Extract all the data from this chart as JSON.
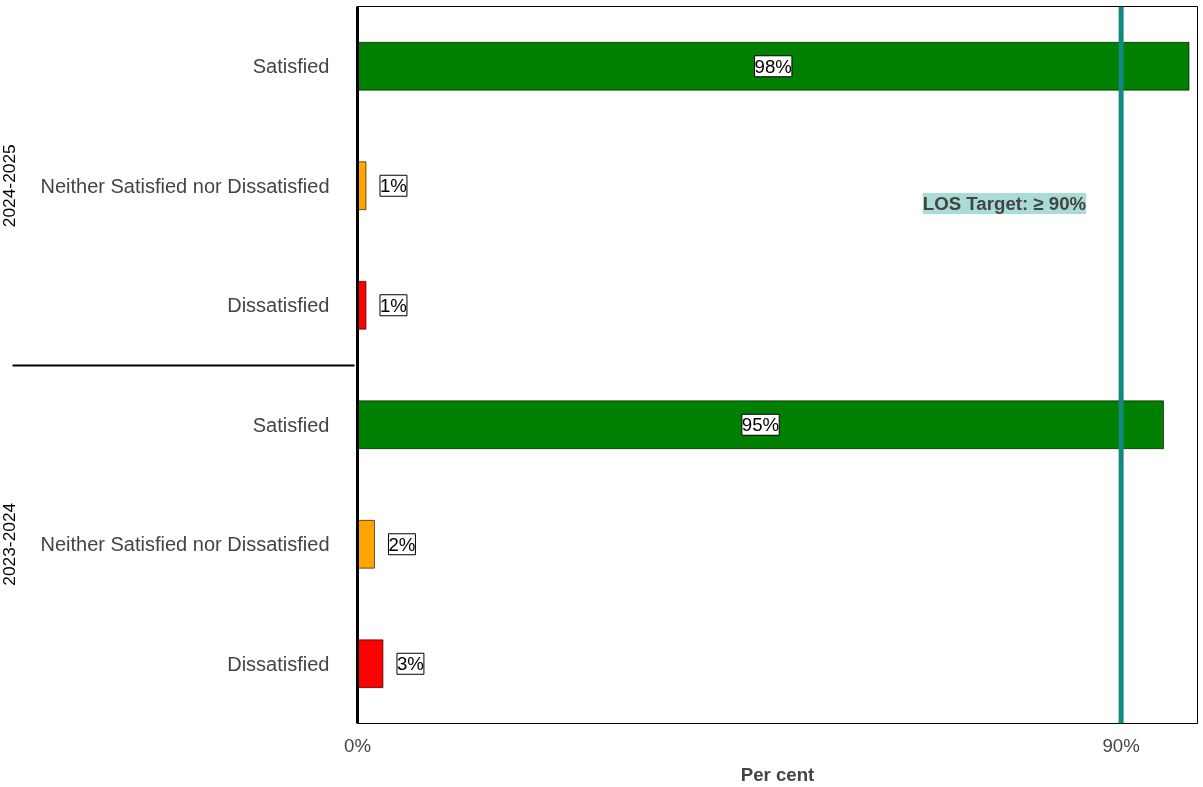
{
  "chart_data": {
    "type": "bar",
    "orientation": "horizontal",
    "xlabel": "Per cent",
    "categories": [
      "Satisfied",
      "Neither Satisfied nor Dissatisfied",
      "Dissatisfied",
      "Satisfied",
      "Neither Satisfied nor Dissatisfied",
      "Dissatisfied"
    ],
    "annotations": [
      "2024-2025",
      "2023-2024"
    ],
    "values": [
      98,
      1,
      1,
      95,
      2,
      3
    ],
    "colors": [
      "#008000",
      "#ffa500",
      "#ff0000",
      "#008000",
      "#ffa500",
      "#ff0000"
    ],
    "value_labels": [
      "98%",
      "1%",
      "1%",
      "95%",
      "2%",
      "3%"
    ],
    "xlim": [
      0,
      99
    ],
    "xticks": [
      {
        "value": 0,
        "label": "0%"
      },
      {
        "value": 90,
        "label": "90%"
      }
    ],
    "ref_lines": [
      {
        "axis": "x",
        "value": 90,
        "label": "LOS Target: ≥ 90%",
        "color": "#138a80"
      }
    ],
    "grid": false
  }
}
